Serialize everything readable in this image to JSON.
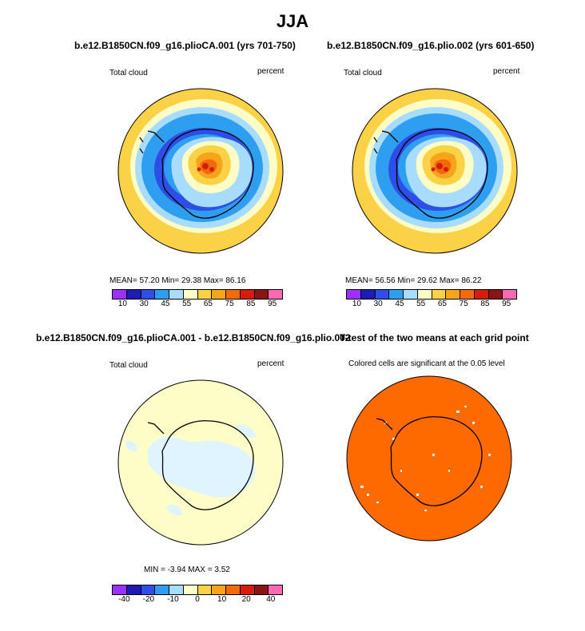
{
  "title": "JJA",
  "panels": [
    {
      "title": "b.e12.B1850CN.f09_g16.plioCA.001 (yrs 701-750)",
      "left_label": "Total cloud",
      "right_label": "percent",
      "stats": "MEAN=   57.20   Min=   29.38   Max=   86.16",
      "legend": {
        "colors": [
          "#9b30ff",
          "#1c1cb4",
          "#2e4ee8",
          "#2e9ff0",
          "#a8dcff",
          "#fdfdc8",
          "#fbd246",
          "#f8a31c",
          "#f26a0c",
          "#d81c0c",
          "#8b1414",
          "#ff69b4"
        ],
        "labels": [
          "10",
          "30",
          "45",
          "55",
          "65",
          "75",
          "85",
          "95"
        ]
      }
    },
    {
      "title": "b.e12.B1850CN.f09_g16.plio.002 (yrs 601-650)",
      "left_label": "Total cloud",
      "right_label": "percent",
      "stats": "MEAN=   56.56   Min=   29.62   Max=   86.22",
      "legend": {
        "colors": [
          "#9b30ff",
          "#1c1cb4",
          "#2e4ee8",
          "#2e9ff0",
          "#a8dcff",
          "#fdfdc8",
          "#fbd246",
          "#f8a31c",
          "#f26a0c",
          "#d81c0c",
          "#8b1414",
          "#ff69b4"
        ],
        "labels": [
          "10",
          "30",
          "45",
          "55",
          "65",
          "75",
          "85",
          "95"
        ]
      }
    },
    {
      "title": "b.e12.B1850CN.f09_g16.plioCA.001 - b.e12.B1850CN.f09_g16.plio.002",
      "left_label": "Total cloud",
      "right_label": "percent",
      "stats": "MIN =   -3.94  MAX =    3.52",
      "legend": {
        "colors": [
          "#9b30ff",
          "#1c1cb4",
          "#2e4ee8",
          "#2e9ff0",
          "#a8dcff",
          "#fdfdc8",
          "#fbd246",
          "#f8a31c",
          "#f26a0c",
          "#d81c0c",
          "#8b1414",
          "#ff69b4"
        ],
        "labels": [
          "-40",
          "-20",
          "-10",
          "0",
          "10",
          "20",
          "40"
        ]
      }
    },
    {
      "title": "T-test of the two means at each grid point",
      "center_label": "Colored cells are significant at the 0.05 level"
    }
  ],
  "colors": {
    "ocean_warm": "#fbd246",
    "ocean_pale": "#fdfdc8",
    "cloud_blue": "#2e9ff0",
    "cloud_deep": "#2e4ee8",
    "ttest_orange": "#ff6a00"
  }
}
